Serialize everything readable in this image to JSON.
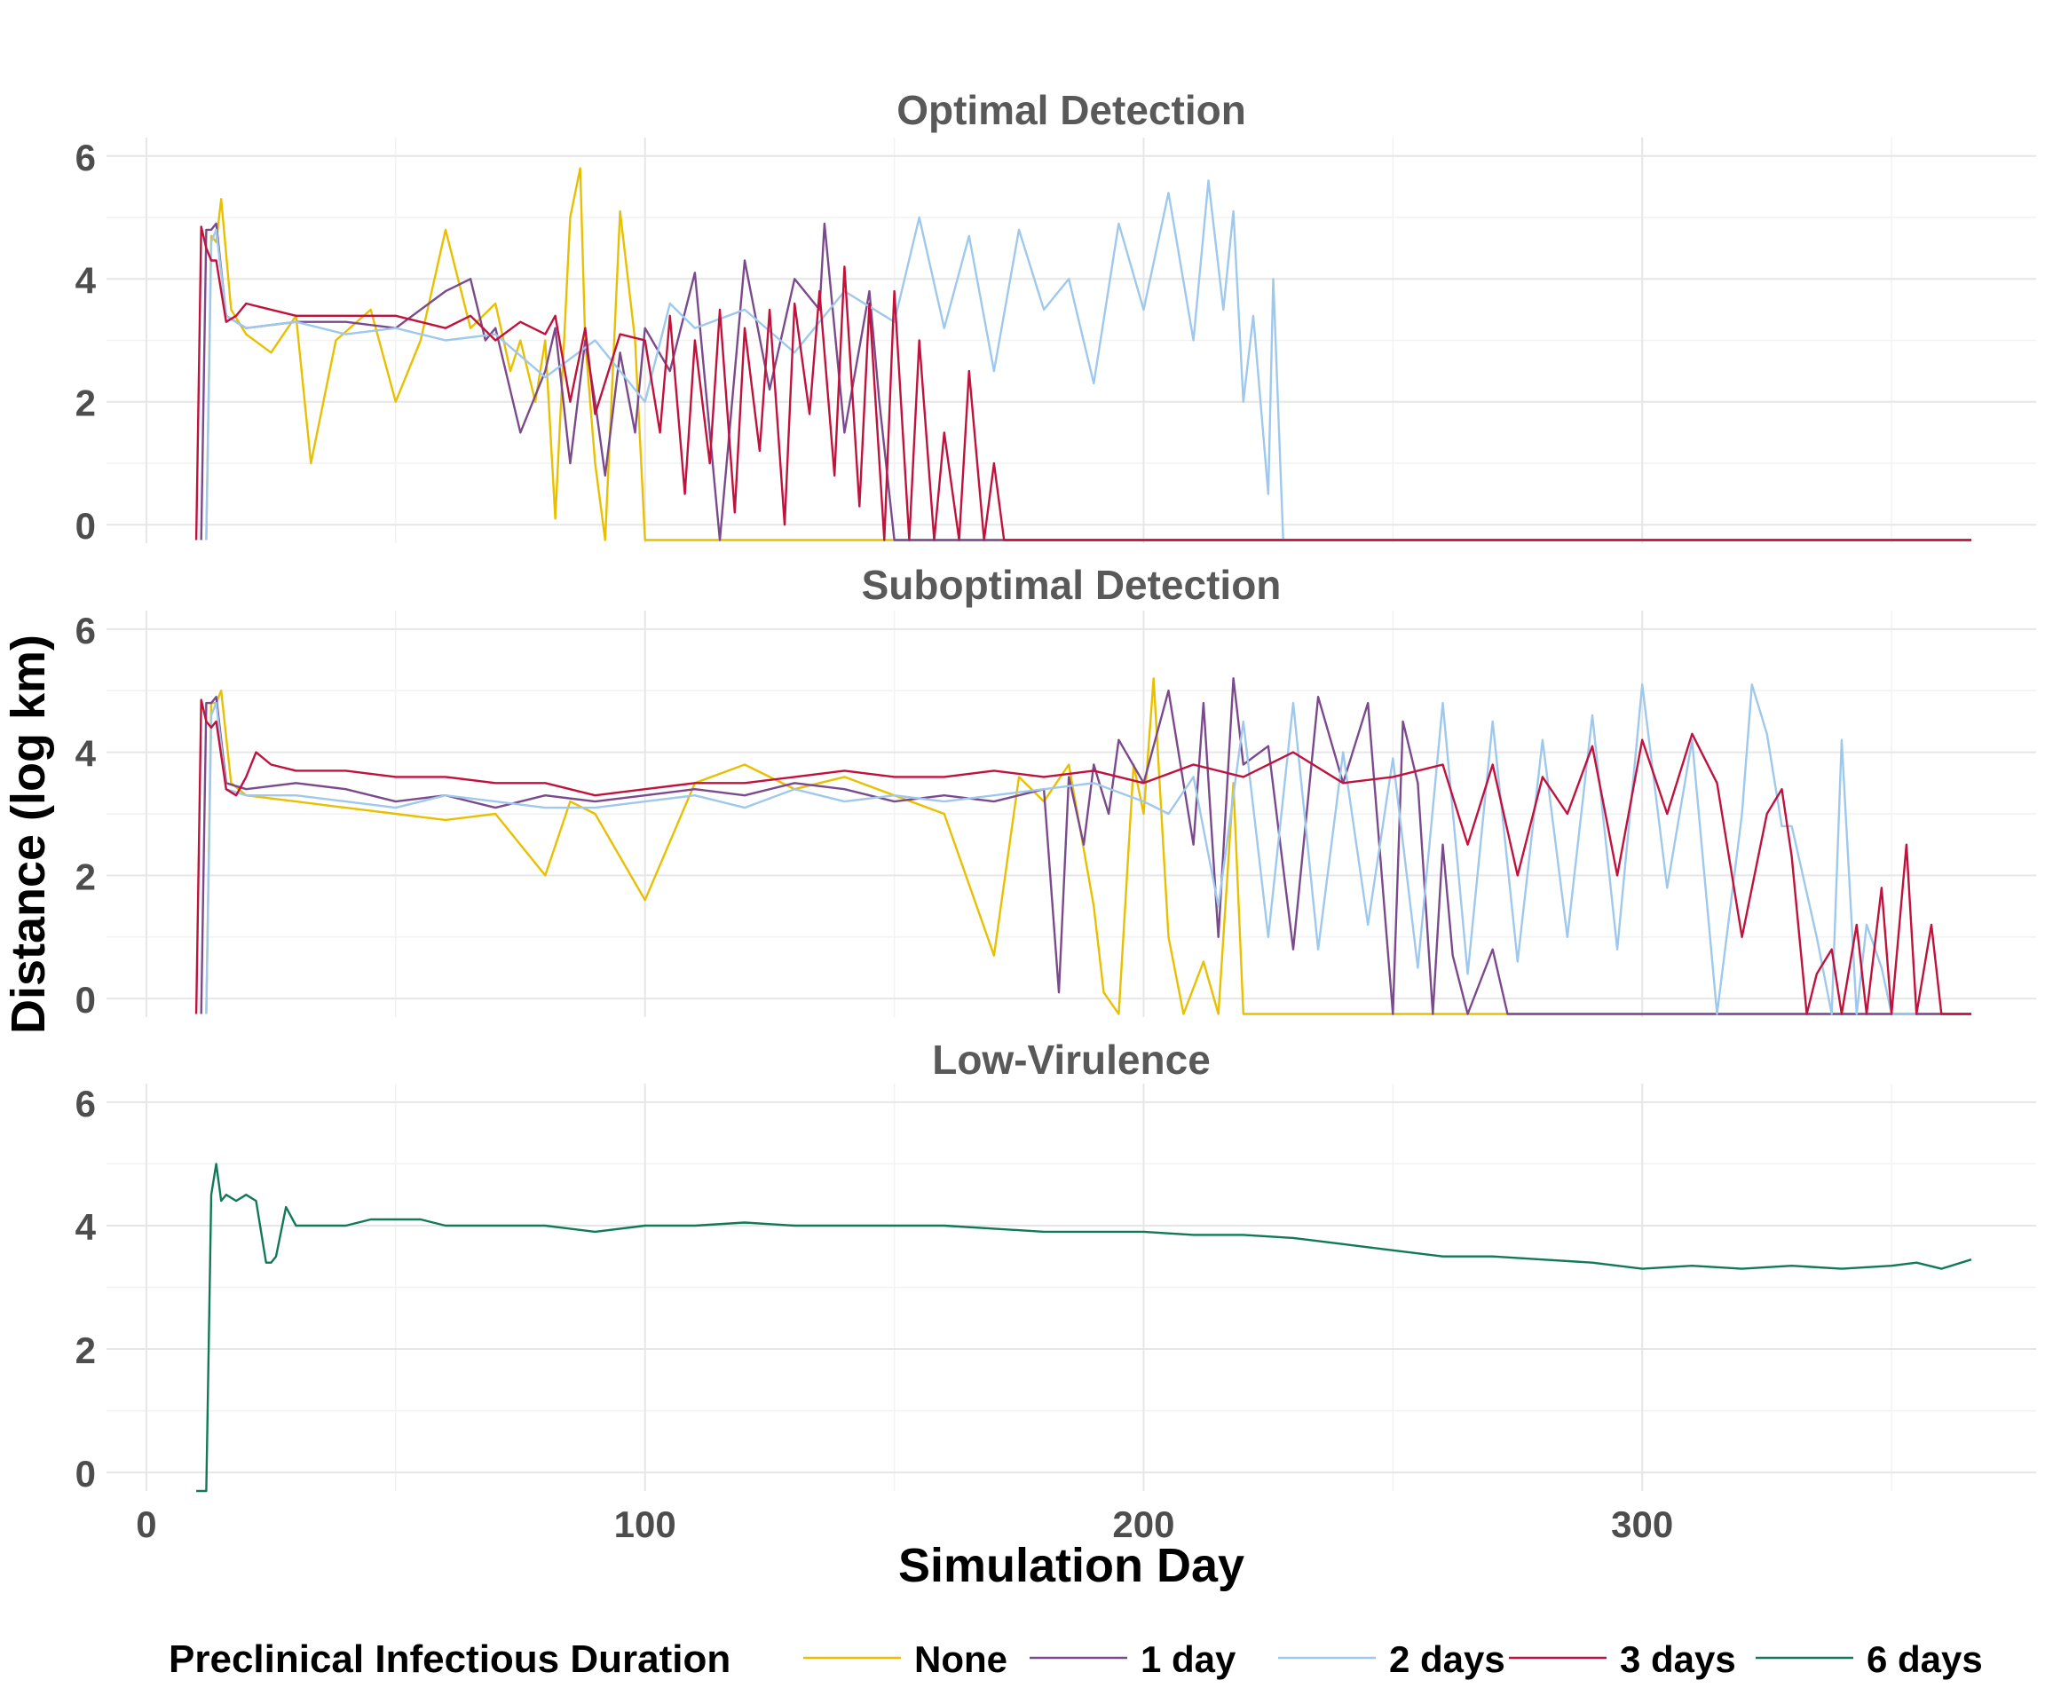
{
  "chart_data": {
    "type": "line",
    "xlabel": "Simulation Day",
    "ylabel": "Distance (log km)",
    "xlim": [
      -8,
      379
    ],
    "ylim": [
      -0.3,
      6.3
    ],
    "x_ticks": [
      0,
      100,
      200,
      300
    ],
    "y_ticks": [
      0,
      2,
      4,
      6
    ],
    "grid": true,
    "legend": {
      "position": "bottom",
      "title": "Preclinical Infectious Duration",
      "entries": [
        {
          "name": "None",
          "color": "#E8C000"
        },
        {
          "name": "1 day",
          "color": "#7B4A8C"
        },
        {
          "name": "2 days",
          "color": "#9EC8EC"
        },
        {
          "name": "3 days",
          "color": "#C0123C"
        },
        {
          "name": "6 days",
          "color": "#117A55"
        }
      ]
    },
    "panels": [
      {
        "title": "Optimal Detection",
        "series": [
          {
            "name": "None",
            "color": "#E8C000",
            "x": [
              12,
              13,
              14,
              15,
              17,
              20,
              25,
              30,
              33,
              38,
              45,
              50,
              55,
              60,
              65,
              70,
              73,
              75,
              78,
              80,
              82,
              85,
              87,
              88,
              90,
              92,
              95,
              98,
              100,
              105,
              110,
              120,
              140,
              200,
              300,
              366
            ],
            "y": [
              -0.25,
              4.7,
              4.6,
              5.3,
              3.5,
              3.1,
              2.8,
              3.4,
              1.0,
              3.0,
              3.5,
              2.0,
              3.0,
              4.8,
              3.2,
              3.6,
              2.5,
              3.0,
              2.0,
              3.0,
              0.1,
              5.0,
              5.8,
              3.0,
              1.0,
              -0.25,
              5.1,
              3.0,
              -0.25,
              -0.25,
              -0.25,
              -0.25,
              -0.25,
              -0.25,
              -0.25,
              -0.25
            ]
          },
          {
            "name": "1 day",
            "color": "#7B4A8C",
            "x": [
              11,
              12,
              13,
              14,
              16,
              20,
              30,
              40,
              50,
              60,
              65,
              68,
              70,
              75,
              80,
              82,
              85,
              88,
              90,
              92,
              95,
              98,
              100,
              105,
              110,
              115,
              120,
              125,
              130,
              135,
              136,
              140,
              145,
              147,
              150,
              200,
              300,
              366
            ],
            "y": [
              -0.25,
              4.8,
              4.8,
              4.9,
              3.4,
              3.2,
              3.3,
              3.3,
              3.2,
              3.8,
              4.0,
              3.0,
              3.2,
              1.5,
              2.5,
              3.2,
              1.0,
              3.0,
              2.0,
              0.8,
              2.8,
              1.5,
              3.2,
              2.5,
              4.1,
              -0.25,
              4.3,
              2.2,
              4.0,
              3.5,
              4.9,
              1.5,
              3.8,
              2.0,
              -0.25,
              -0.25,
              -0.25,
              -0.25
            ]
          },
          {
            "name": "2 days",
            "color": "#9EC8EC",
            "x": [
              12,
              13,
              14,
              16,
              20,
              30,
              40,
              50,
              60,
              70,
              80,
              90,
              100,
              105,
              110,
              120,
              130,
              140,
              150,
              155,
              160,
              165,
              170,
              175,
              180,
              185,
              190,
              195,
              200,
              205,
              210,
              213,
              216,
              218,
              220,
              222,
              225,
              226,
              228,
              230,
              300,
              366
            ],
            "y": [
              -0.25,
              4.6,
              4.8,
              3.4,
              3.2,
              3.3,
              3.1,
              3.2,
              3.0,
              3.1,
              2.4,
              3.0,
              2.0,
              3.6,
              3.2,
              3.5,
              2.8,
              3.8,
              3.3,
              5.0,
              3.2,
              4.7,
              2.5,
              4.8,
              3.5,
              4.0,
              2.3,
              4.9,
              3.5,
              5.4,
              3.0,
              5.6,
              3.5,
              5.1,
              2.0,
              3.4,
              0.5,
              4.0,
              -0.25,
              -0.25,
              -0.25,
              -0.25
            ]
          },
          {
            "name": "3 days",
            "color": "#C0123C",
            "x": [
              10,
              11,
              12,
              13,
              14,
              16,
              18,
              20,
              25,
              30,
              40,
              50,
              60,
              65,
              70,
              75,
              80,
              82,
              85,
              88,
              90,
              95,
              100,
              103,
              105,
              108,
              110,
              113,
              115,
              118,
              120,
              123,
              125,
              128,
              130,
              133,
              135,
              138,
              140,
              143,
              145,
              148,
              150,
              153,
              155,
              158,
              160,
              163,
              165,
              168,
              170,
              172,
              200,
              300,
              366
            ],
            "y": [
              -0.25,
              4.85,
              4.5,
              4.3,
              4.3,
              3.3,
              3.4,
              3.6,
              3.5,
              3.4,
              3.4,
              3.4,
              3.2,
              3.4,
              3.0,
              3.3,
              3.1,
              3.4,
              2.0,
              3.2,
              1.8,
              3.1,
              3.0,
              1.5,
              3.4,
              0.5,
              3.0,
              1.0,
              3.5,
              0.2,
              3.2,
              1.2,
              3.5,
              0.0,
              3.6,
              1.8,
              3.8,
              0.8,
              4.2,
              0.3,
              3.6,
              -0.25,
              3.8,
              -0.25,
              3.0,
              -0.25,
              1.5,
              -0.25,
              2.5,
              -0.25,
              1.0,
              -0.25,
              -0.25,
              -0.25,
              -0.25
            ]
          }
        ]
      },
      {
        "title": "Suboptimal Detection",
        "series": [
          {
            "name": "None",
            "color": "#E8C000",
            "x": [
              12,
              13,
              14,
              15,
              17,
              20,
              30,
              40,
              50,
              60,
              70,
              80,
              85,
              90,
              100,
              110,
              120,
              130,
              140,
              150,
              160,
              170,
              175,
              180,
              185,
              190,
              192,
              195,
              198,
              200,
              202,
              205,
              208,
              212,
              215,
              218,
              220,
              300,
              366
            ],
            "y": [
              -0.25,
              4.8,
              4.8,
              5.0,
              3.5,
              3.3,
              3.2,
              3.1,
              3.0,
              2.9,
              3.0,
              2.0,
              3.2,
              3.0,
              1.6,
              3.5,
              3.8,
              3.4,
              3.6,
              3.3,
              3.0,
              0.7,
              3.6,
              3.2,
              3.8,
              1.5,
              0.1,
              -0.25,
              3.8,
              3.0,
              5.2,
              1.0,
              -0.25,
              0.6,
              -0.25,
              3.5,
              -0.25,
              -0.25,
              -0.25
            ]
          },
          {
            "name": "1 day",
            "color": "#7B4A8C",
            "x": [
              11,
              12,
              13,
              14,
              16,
              20,
              30,
              40,
              50,
              60,
              70,
              80,
              90,
              100,
              110,
              120,
              130,
              140,
              150,
              160,
              170,
              180,
              183,
              185,
              188,
              190,
              193,
              195,
              200,
              205,
              210,
              212,
              215,
              218,
              220,
              225,
              230,
              235,
              240,
              245,
              250,
              252,
              255,
              258,
              260,
              262,
              265,
              270,
              273,
              275,
              300,
              366
            ],
            "y": [
              -0.25,
              4.8,
              4.8,
              4.9,
              3.5,
              3.4,
              3.5,
              3.4,
              3.2,
              3.3,
              3.1,
              3.3,
              3.2,
              3.3,
              3.4,
              3.3,
              3.5,
              3.4,
              3.2,
              3.3,
              3.2,
              3.4,
              0.1,
              3.6,
              2.5,
              3.8,
              3.0,
              4.2,
              3.5,
              5.0,
              2.5,
              4.8,
              1.0,
              5.2,
              3.8,
              4.1,
              0.8,
              4.9,
              3.5,
              4.8,
              -0.25,
              4.5,
              3.5,
              -0.25,
              2.5,
              0.7,
              -0.25,
              0.8,
              -0.25,
              -0.25,
              -0.25,
              -0.25
            ]
          },
          {
            "name": "2 days",
            "color": "#9EC8EC",
            "x": [
              12,
              13,
              14,
              16,
              20,
              30,
              40,
              50,
              60,
              70,
              80,
              90,
              100,
              110,
              120,
              130,
              140,
              150,
              160,
              170,
              180,
              190,
              200,
              205,
              210,
              215,
              220,
              225,
              230,
              235,
              240,
              245,
              250,
              255,
              260,
              265,
              270,
              275,
              280,
              285,
              290,
              295,
              300,
              305,
              310,
              315,
              320,
              322,
              325,
              328,
              330,
              335,
              338,
              340,
              343,
              345,
              348,
              350,
              355
            ],
            "y": [
              -0.25,
              4.6,
              4.8,
              3.4,
              3.3,
              3.3,
              3.2,
              3.1,
              3.3,
              3.2,
              3.1,
              3.1,
              3.2,
              3.3,
              3.1,
              3.4,
              3.2,
              3.3,
              3.2,
              3.3,
              3.4,
              3.5,
              3.2,
              3.0,
              3.6,
              1.5,
              4.5,
              1.0,
              4.8,
              0.8,
              4.0,
              1.2,
              3.9,
              0.5,
              4.8,
              0.4,
              4.5,
              0.6,
              4.2,
              1.0,
              4.6,
              0.8,
              5.1,
              1.8,
              4.2,
              -0.25,
              3.0,
              5.1,
              4.3,
              2.8,
              2.8,
              1.0,
              -0.25,
              4.2,
              -0.25,
              1.2,
              0.5,
              -0.25,
              -0.25
            ]
          },
          {
            "name": "3 days",
            "color": "#C0123C",
            "x": [
              10,
              11,
              12,
              13,
              14,
              16,
              18,
              20,
              22,
              25,
              30,
              40,
              50,
              60,
              70,
              80,
              90,
              100,
              110,
              120,
              130,
              140,
              150,
              160,
              170,
              180,
              190,
              200,
              210,
              220,
              230,
              240,
              250,
              260,
              265,
              270,
              275,
              280,
              285,
              290,
              295,
              300,
              305,
              310,
              315,
              320,
              325,
              328,
              330,
              333,
              335,
              338,
              340,
              343,
              345,
              348,
              350,
              353,
              355,
              358,
              360,
              366
            ],
            "y": [
              -0.25,
              4.85,
              4.5,
              4.4,
              4.5,
              3.4,
              3.3,
              3.6,
              4.0,
              3.8,
              3.7,
              3.7,
              3.6,
              3.6,
              3.5,
              3.5,
              3.3,
              3.4,
              3.5,
              3.5,
              3.6,
              3.7,
              3.6,
              3.6,
              3.7,
              3.6,
              3.7,
              3.5,
              3.8,
              3.6,
              4.0,
              3.5,
              3.6,
              3.8,
              2.5,
              3.8,
              2.0,
              3.6,
              3.0,
              4.1,
              2.0,
              4.2,
              3.0,
              4.3,
              3.5,
              1.0,
              3.0,
              3.4,
              2.3,
              -0.25,
              0.4,
              0.8,
              -0.25,
              1.2,
              -0.25,
              1.8,
              -0.25,
              2.5,
              -0.25,
              1.2,
              -0.25,
              -0.25
            ]
          }
        ]
      },
      {
        "title": "Low-Virulence",
        "series": [
          {
            "name": "6 days",
            "color": "#117A55",
            "x": [
              10,
              11,
              12,
              13,
              14,
              15,
              16,
              18,
              20,
              22,
              24,
              25,
              26,
              28,
              30,
              35,
              40,
              45,
              50,
              55,
              60,
              70,
              80,
              90,
              100,
              110,
              120,
              130,
              140,
              150,
              160,
              170,
              180,
              190,
              200,
              210,
              220,
              230,
              240,
              250,
              260,
              270,
              280,
              290,
              300,
              310,
              320,
              330,
              340,
              350,
              355,
              360,
              366
            ],
            "y": [
              -0.3,
              -0.3,
              -0.3,
              4.5,
              5.0,
              4.4,
              4.5,
              4.4,
              4.5,
              4.4,
              3.4,
              3.4,
              3.5,
              4.3,
              4.0,
              4.0,
              4.0,
              4.1,
              4.1,
              4.1,
              4.0,
              4.0,
              4.0,
              3.9,
              4.0,
              4.0,
              4.05,
              4.0,
              4.0,
              4.0,
              4.0,
              3.95,
              3.9,
              3.9,
              3.9,
              3.85,
              3.85,
              3.8,
              3.7,
              3.6,
              3.5,
              3.5,
              3.45,
              3.4,
              3.3,
              3.35,
              3.3,
              3.35,
              3.3,
              3.35,
              3.4,
              3.3,
              3.45
            ]
          }
        ]
      }
    ]
  }
}
